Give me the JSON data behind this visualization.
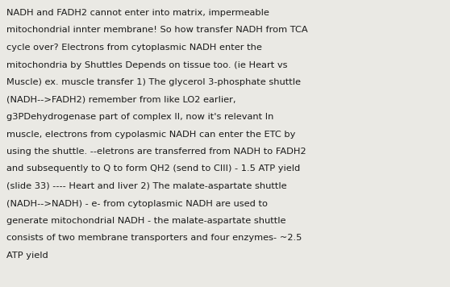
{
  "background_color": "#eae9e4",
  "text_color": "#1a1a1a",
  "font_size": 8.2,
  "font_family": "DejaVu Sans",
  "lines": [
    "NADH and FADH2 cannot enter into matrix, impermeable",
    "mitochondrial innter membrane! So how transfer NADH from TCA",
    "cycle over? Electrons from cytoplasmic NADH enter the",
    "mitochondria by Shuttles Depends on tissue too. (ie Heart vs",
    "Muscle) ex. muscle transfer 1) The glycerol 3-phosphate shuttle",
    "(NADH-->FADH2) remember from like LO2 earlier,",
    "g3PDehydrogenase part of complex II, now it's relevant In",
    "muscle, electrons from cypolasmic NADH can enter the ETC by",
    "using the shuttle. --eletrons are transferred from NADH to FADH2",
    "and subsequently to Q to form QH2 (send to CIII) - 1.5 ATP yield",
    "(slide 33) ---- Heart and liver 2) The malate-aspartate shuttle",
    "(NADH-->NADH) - e- from cytoplasmic NADH are used to",
    "generate mitochondrial NADH - the malate-aspartate shuttle",
    "consists of two membrane transporters and four enzymes- ~2.5",
    "ATP yield"
  ]
}
